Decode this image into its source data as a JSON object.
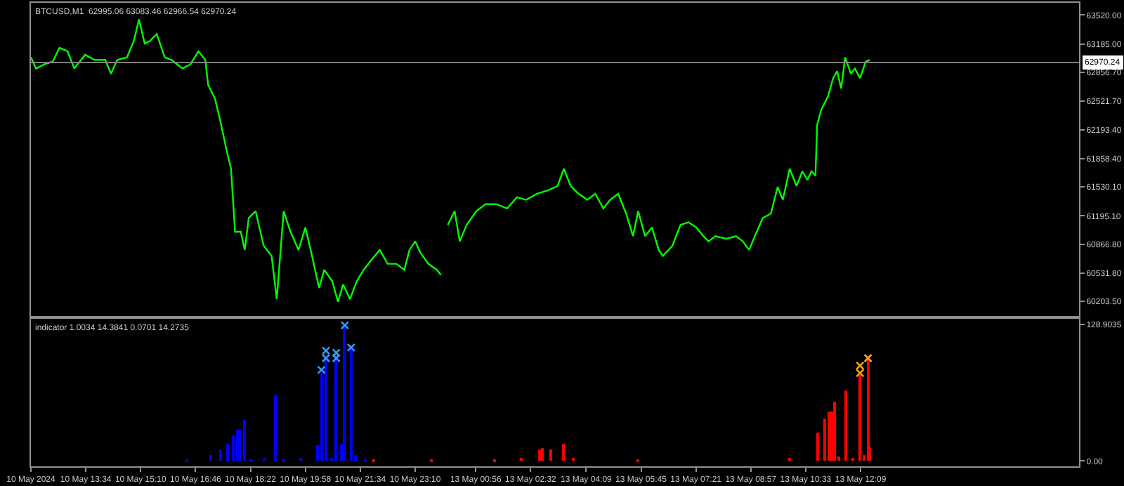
{
  "chart_data": [
    {
      "type": "line",
      "title": "BTCUSD,M1  62995.06 63083.46 62966.54 62970.24",
      "tick_labels": false,
      "xlim": [
        "2024-05-10T11:58",
        "2024-05-11T00:00"
      ],
      "ylim": [
        60039,
        63661
      ],
      "ref_lines": [
        {
          "axis": "y",
          "value": 62970.24,
          "color": "#808080"
        }
      ],
      "series": [
        {
          "color": "#00ff00",
          "line_style": "solid",
          "marker": "none",
          "x": [
            "2024-05-10T11:58",
            "2024-05-10T12:07",
            "2024-05-10T12:22",
            "2024-05-10T12:36",
            "2024-05-10T12:48",
            "2024-05-10T13:02",
            "2024-05-10T13:14",
            "2024-05-10T13:33",
            "2024-05-10T13:49",
            "2024-05-10T14:08",
            "2024-05-10T14:18",
            "2024-05-10T14:29",
            "2024-05-10T14:46",
            "2024-05-10T14:58",
            "2024-05-10T15:07",
            "2024-05-10T15:17",
            "2024-05-10T15:26",
            "2024-05-10T15:38",
            "2024-05-10T15:52",
            "2024-05-10T16:04",
            "2024-05-10T16:23",
            "2024-05-10T16:37",
            "2024-05-10T16:51",
            "2024-05-10T17:03",
            "2024-05-10T17:08",
            "2024-05-10T17:20",
            "2024-05-10T17:29",
            "2024-05-10T17:41",
            "2024-05-10T17:48",
            "2024-05-10T17:55",
            "2024-05-10T18:05",
            "2024-05-10T18:12",
            "2024-05-10T18:19",
            "2024-05-10T18:31",
            "2024-05-10T18:45",
            "2024-05-10T18:59",
            "2024-05-10T19:08",
            "2024-05-10T19:20",
            "2024-05-10T19:32",
            "2024-05-10T19:46",
            "2024-05-10T19:58",
            "2024-05-10T20:10",
            "2024-05-10T20:22",
            "2024-05-10T20:31",
            "2024-05-10T20:45",
            "2024-05-10T20:55",
            "2024-05-10T21:04",
            "2024-05-10T21:16",
            "2024-05-10T21:28",
            "2024-05-10T21:40",
            "2024-05-10T21:54",
            "2024-05-10T22:08",
            "2024-05-10T22:22",
            "2024-05-10T22:37",
            "2024-05-10T22:51",
            "2024-05-10T23:00",
            "2024-05-10T23:10",
            "2024-05-10T23:19",
            "2024-05-10T23:33",
            "2024-05-10T23:48",
            "2024-05-10T23:55"
          ],
          "values": [
            63030,
            62900,
            62950,
            62980,
            63140,
            63100,
            62900,
            63060,
            63000,
            63000,
            62840,
            63000,
            63030,
            63220,
            63470,
            63190,
            63220,
            63300,
            63030,
            63000,
            62900,
            62950,
            63100,
            63000,
            62710,
            62550,
            62300,
            61930,
            61740,
            61010,
            61010,
            60800,
            61170,
            61250,
            60850,
            60730,
            60230,
            61250,
            61010,
            60800,
            61060,
            60720,
            60360,
            60570,
            60440,
            60200,
            60400,
            60230,
            60440,
            60570,
            60690,
            60800,
            60640,
            60640,
            60570,
            60800,
            60900,
            60770,
            60640,
            60570,
            60510
          ]
        }
      ]
    },
    {
      "type": "line",
      "tick_labels": "y",
      "xlim": [
        "2024-05-13T00:00",
        "2024-05-13T18:31"
      ],
      "ylim": [
        60039,
        63661
      ],
      "yticks": [
        {
          "value": 60203.5,
          "label": "60203.50"
        },
        {
          "value": 60531.8,
          "label": "60531.80"
        },
        {
          "value": 60866.8,
          "label": "60866.80"
        },
        {
          "value": 61195.1,
          "label": "61195.10"
        },
        {
          "value": 61530.1,
          "label": "61530.10"
        },
        {
          "value": 61858.4,
          "label": "61858.40"
        },
        {
          "value": 62193.4,
          "label": "62193.40"
        },
        {
          "value": 62521.7,
          "label": "62521.70"
        },
        {
          "value": 62856.7,
          "label": "62856.70"
        },
        {
          "value": 63185,
          "label": "63185.00"
        },
        {
          "value": 63520,
          "label": "63520.00"
        }
      ],
      "ref_lines": [
        {
          "axis": "y",
          "value": 62970.24,
          "label": "62970.24",
          "color": "#808080"
        }
      ],
      "series": [
        {
          "color": "#00ff00",
          "line_style": "solid",
          "marker": "none",
          "x": [
            "2024-05-13T00:07",
            "2024-05-13T00:19",
            "2024-05-13T00:28",
            "2024-05-13T00:40",
            "2024-05-13T00:57",
            "2024-05-13T01:13",
            "2024-05-13T01:32",
            "2024-05-13T01:51",
            "2024-05-13T02:08",
            "2024-05-13T02:24",
            "2024-05-13T02:43",
            "2024-05-13T03:02",
            "2024-05-13T03:19",
            "2024-05-13T03:30",
            "2024-05-13T03:42",
            "2024-05-13T03:54",
            "2024-05-13T04:11",
            "2024-05-13T04:25",
            "2024-05-13T04:39",
            "2024-05-13T04:51",
            "2024-05-13T05:05",
            "2024-05-13T05:19",
            "2024-05-13T05:31",
            "2024-05-13T05:40",
            "2024-05-13T05:52",
            "2024-05-13T06:04",
            "2024-05-13T06:16",
            "2024-05-13T06:23",
            "2024-05-13T06:40",
            "2024-05-13T06:54",
            "2024-05-13T07:08",
            "2024-05-13T07:22",
            "2024-05-13T07:34",
            "2024-05-13T07:43",
            "2024-05-13T07:55",
            "2024-05-13T08:14",
            "2024-05-13T08:31",
            "2024-05-13T08:43",
            "2024-05-13T08:54",
            "2024-05-13T09:04",
            "2024-05-13T09:18",
            "2024-05-13T09:32",
            "2024-05-13T09:44",
            "2024-05-13T09:53",
            "2024-05-13T10:05",
            "2024-05-13T10:17",
            "2024-05-13T10:27",
            "2024-05-13T10:36",
            "2024-05-13T10:43",
            "2024-05-13T10:50",
            "2024-05-13T10:53",
            "2024-05-13T11:00",
            "2024-05-13T11:12",
            "2024-05-13T11:21",
            "2024-05-13T11:28",
            "2024-05-13T11:35",
            "2024-05-13T11:42",
            "2024-05-13T11:52",
            "2024-05-13T11:59",
            "2024-05-13T12:08",
            "2024-05-13T12:18",
            "2024-05-13T12:25"
          ],
          "values": [
            61090,
            61250,
            60900,
            61090,
            61250,
            61330,
            61330,
            61280,
            61410,
            61380,
            61450,
            61490,
            61540,
            61740,
            61540,
            61460,
            61380,
            61450,
            61280,
            61380,
            61450,
            61220,
            60960,
            61250,
            60960,
            61060,
            60800,
            60730,
            60850,
            61090,
            61120,
            61060,
            60960,
            60900,
            60960,
            60930,
            60960,
            60900,
            60800,
            60960,
            61170,
            61220,
            61530,
            61380,
            61740,
            61540,
            61710,
            61610,
            61710,
            61660,
            62250,
            62420,
            62580,
            62790,
            62870,
            62670,
            63030,
            62840,
            62900,
            62790,
            62980,
            63000
          ]
        }
      ]
    },
    {
      "type": "bar",
      "title": "indicator 1.0034 14.3841 0.0701 14.2735",
      "tick_labels": "x",
      "xlim": [
        "2024-05-10T11:58",
        "2024-05-11T00:00"
      ],
      "ylim": [
        -5,
        134
      ],
      "xticks": [
        {
          "value": "2024-05-10T11:58",
          "label": "10 May 2024"
        },
        {
          "value": "2024-05-10T13:34",
          "label": "10 May 13:34"
        },
        {
          "value": "2024-05-10T15:10",
          "label": "10 May 15:10"
        },
        {
          "value": "2024-05-10T16:46",
          "label": "10 May 16:46"
        },
        {
          "value": "2024-05-10T18:22",
          "label": "10 May 18:22"
        },
        {
          "value": "2024-05-10T19:58",
          "label": "10 May 19:58"
        },
        {
          "value": "2024-05-10T21:34",
          "label": "10 May 21:34"
        },
        {
          "value": "2024-05-10T23:10",
          "label": "10 May 23:10"
        }
      ],
      "series": [
        {
          "type": "bar",
          "color": "#0000ff",
          "x": [
            "2024-05-10T16:30",
            "2024-05-10T17:13",
            "2024-05-10T17:29",
            "2024-05-10T17:43",
            "2024-05-10T17:53",
            "2024-05-10T18:00",
            "2024-05-10T18:05",
            "2024-05-10T18:12",
            "2024-05-10T18:23",
            "2024-05-10T18:47",
            "2024-05-10T19:06",
            "2024-05-10T19:20",
            "2024-05-10T19:51",
            "2024-05-10T20:19",
            "2024-05-10T20:26",
            "2024-05-10T20:34",
            "2024-05-10T20:45",
            "2024-05-10T20:52",
            "2024-05-10T21:00",
            "2024-05-10T21:07",
            "2024-05-10T21:18",
            "2024-05-10T21:26",
            "2024-05-10T21:42"
          ],
          "values": [
            1,
            6,
            11,
            16,
            24,
            29,
            30,
            39,
            2,
            3,
            63,
            2,
            3,
            15,
            83,
            96,
            3,
            97,
            16,
            128,
            107,
            5,
            2
          ]
        },
        {
          "type": "bar",
          "color": "#ff0000",
          "x": [
            "2024-05-10T21:58",
            "2024-05-10T23:38"
          ],
          "values": [
            1,
            1
          ]
        },
        {
          "type": "scatter",
          "color": "#3399ff",
          "marker": "cross",
          "x": [
            "2024-05-10T20:26",
            "2024-05-10T20:34",
            "2024-05-10T20:34",
            "2024-05-10T20:52",
            "2024-05-10T20:52",
            "2024-05-10T21:07",
            "2024-05-10T21:18"
          ],
          "values": [
            86,
            97,
            104,
            97,
            102,
            128,
            107
          ]
        }
      ]
    },
    {
      "type": "bar",
      "xlim": [
        "2024-05-13T00:00",
        "2024-05-13T18:31"
      ],
      "ylim": [
        -5,
        134
      ],
      "xticks": [
        {
          "value": "2024-05-13T00:56",
          "label": "13 May 00:56"
        },
        {
          "value": "2024-05-13T02:32",
          "label": "13 May 02:32"
        },
        {
          "value": "2024-05-13T04:09",
          "label": "13 May 04:09"
        },
        {
          "value": "2024-05-13T05:45",
          "label": "13 May 05:45"
        },
        {
          "value": "2024-05-13T07:21",
          "label": "13 May 07:21"
        },
        {
          "value": "2024-05-13T08:57",
          "label": "13 May 08:57"
        },
        {
          "value": "2024-05-13T10:33",
          "label": "13 May 10:33"
        },
        {
          "value": "2024-05-13T12:09",
          "label": "13 May 12:09"
        }
      ],
      "yticks": [
        {
          "value": 0,
          "label": "0.00"
        },
        128.9035
      ],
      "series": [
        {
          "type": "bar",
          "color": "#ff0000",
          "x": [
            "2024-05-13T01:28",
            "2024-05-13T02:15",
            "2024-05-13T02:48",
            "2024-05-13T02:53",
            "2024-05-13T03:07",
            "2024-05-13T03:30",
            "2024-05-13T03:47",
            "2024-05-13T05:38",
            "2024-05-13T10:05",
            "2024-05-13T10:53",
            "2024-05-13T11:07",
            "2024-05-13T11:14",
            "2024-05-13T11:19",
            "2024-05-13T11:23",
            "2024-05-13T11:30",
            "2024-05-13T11:42",
            "2024-05-13T11:54",
            "2024-05-13T12:08",
            "2024-05-13T12:15",
            "2024-05-13T12:22",
            "2024-05-13T12:25"
          ],
          "values": [
            1,
            3,
            11,
            12,
            11,
            16,
            3,
            1,
            3,
            27,
            40,
            46,
            47,
            56,
            4,
            67,
            3,
            81,
            6,
            96,
            14
          ]
        },
        {
          "type": "scatter",
          "color": "#ffa500",
          "marker": "cross",
          "x": [
            "2024-05-13T12:08",
            "2024-05-13T12:08",
            "2024-05-13T12:22"
          ],
          "values": [
            83,
            90,
            97
          ]
        }
      ]
    }
  ]
}
